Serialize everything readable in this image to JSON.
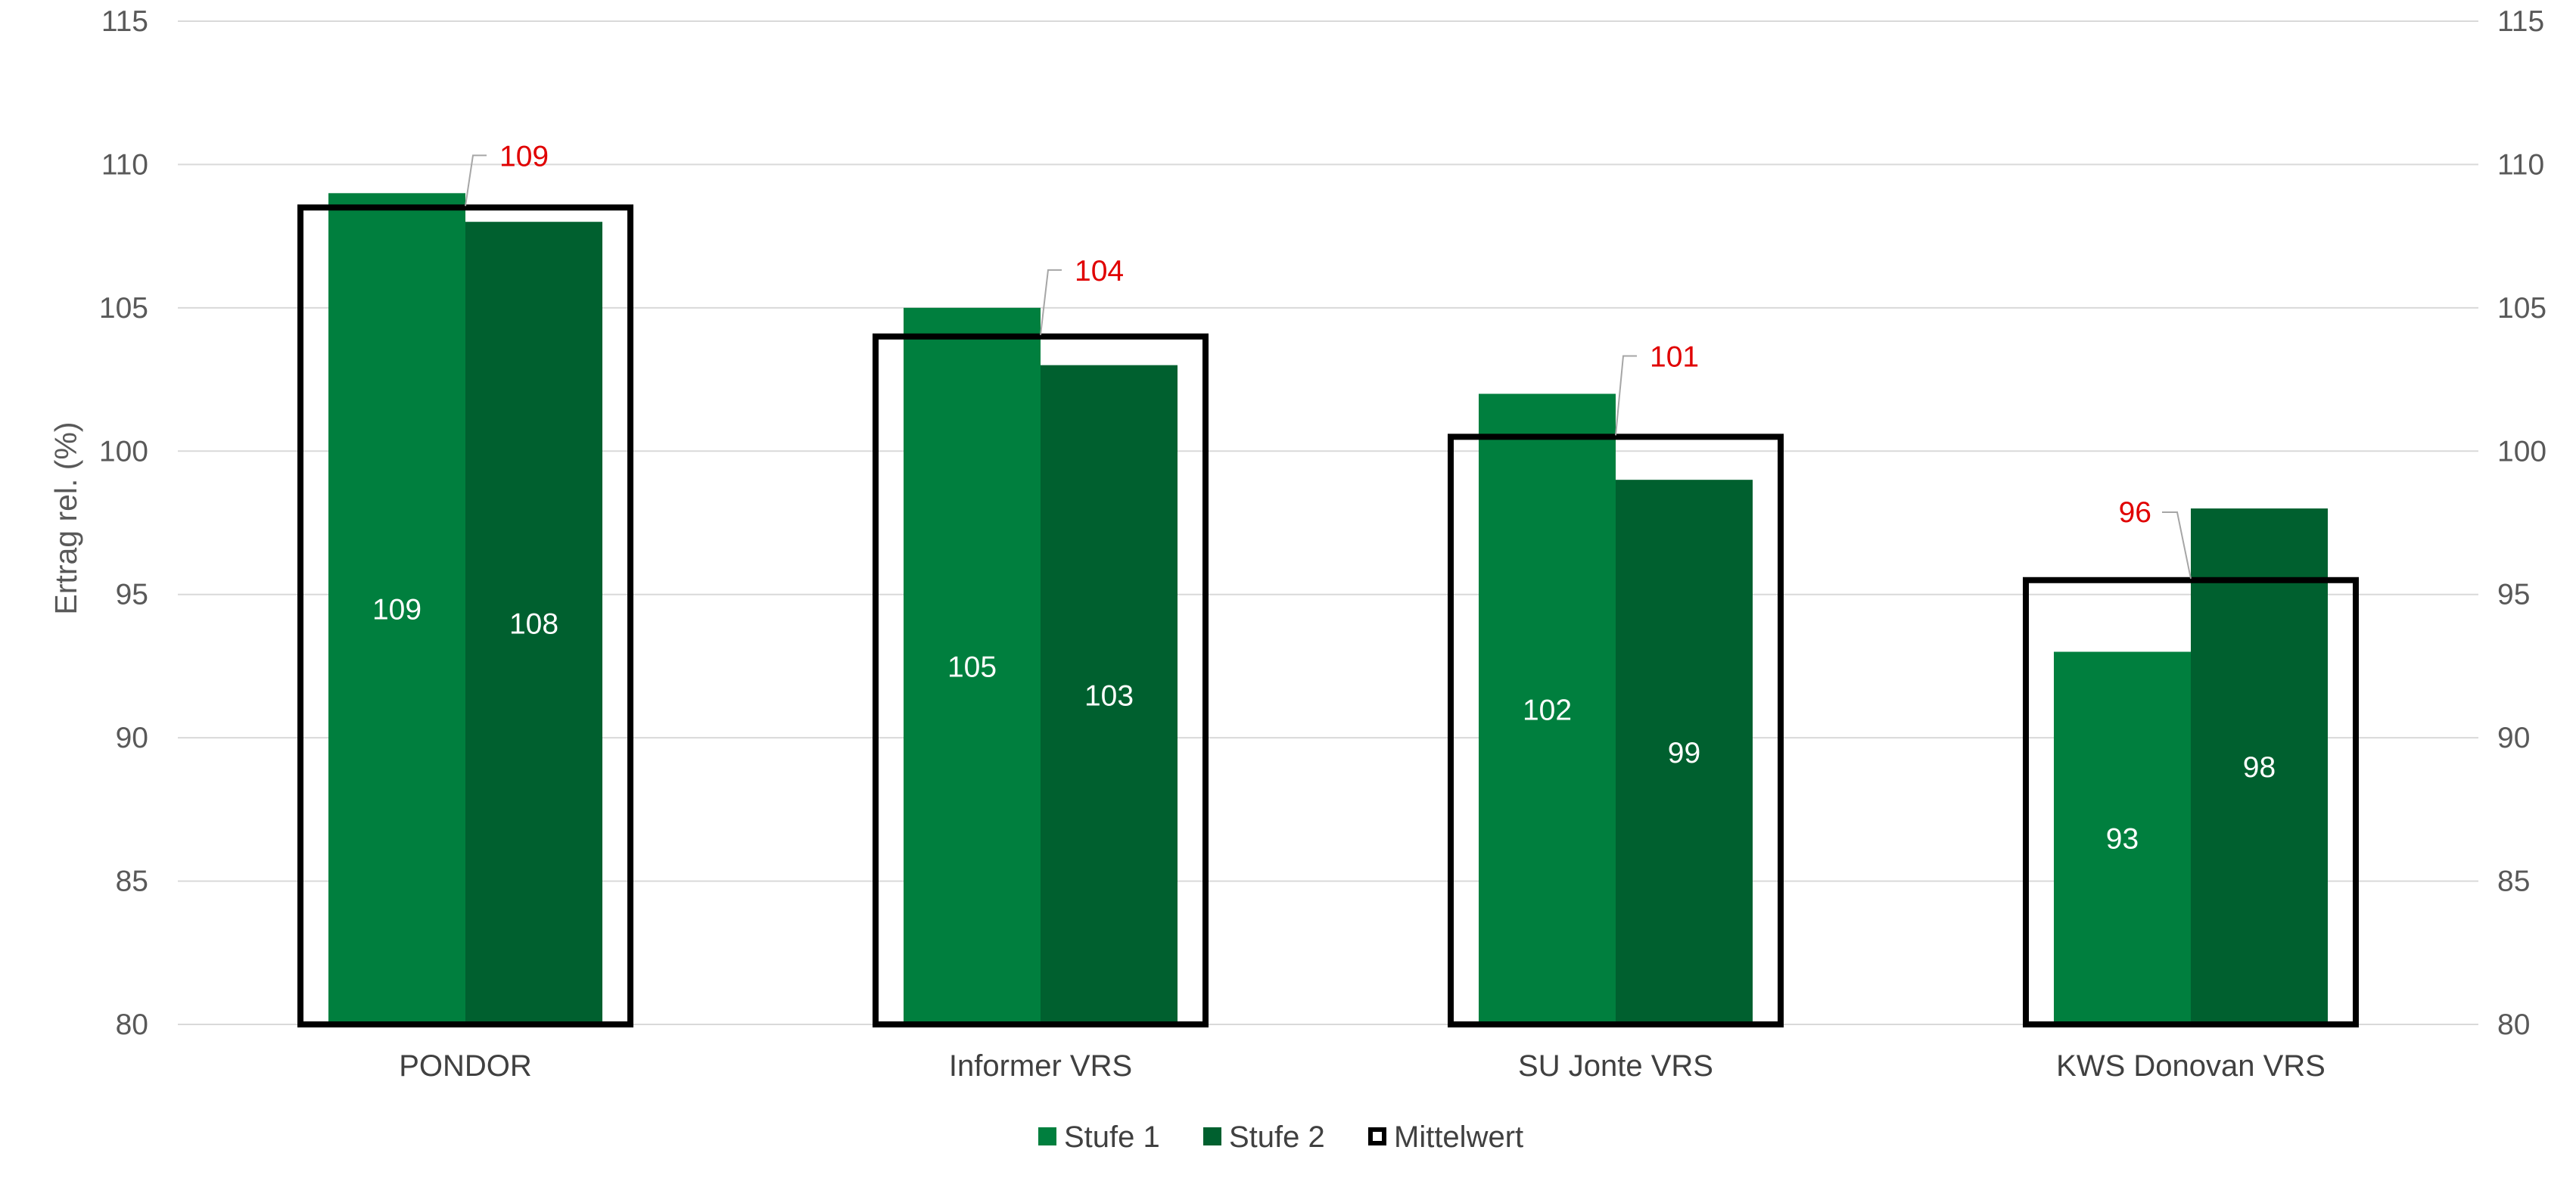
{
  "chart_data": {
    "type": "bar",
    "ylabel": "Ertrag rel. (%)",
    "ylim": [
      80,
      115
    ],
    "yticks": [
      80,
      85,
      90,
      95,
      100,
      105,
      110,
      115
    ],
    "grid": true,
    "secondary_axis": true,
    "legend_position": "bottom",
    "categories": [
      "PONDOR",
      "Informer VRS",
      "SU Jonte VRS",
      "KWS Donovan VRS"
    ],
    "series": [
      {
        "name": "Stufe 1",
        "values": [
          109,
          105,
          102,
          93
        ],
        "labels": [
          "109",
          "105",
          "102",
          "93"
        ],
        "color": "#007f3e"
      },
      {
        "name": "Stufe 2",
        "values": [
          108,
          103,
          99,
          98
        ],
        "labels": [
          "108",
          "103",
          "99",
          "98"
        ],
        "color": "#00602f"
      },
      {
        "name": "Mittelwert",
        "values": [
          109,
          104,
          101,
          96
        ],
        "labels": [
          "109",
          "104",
          "101",
          "96"
        ],
        "color": "#000000",
        "label_color": "#e00000"
      }
    ]
  }
}
